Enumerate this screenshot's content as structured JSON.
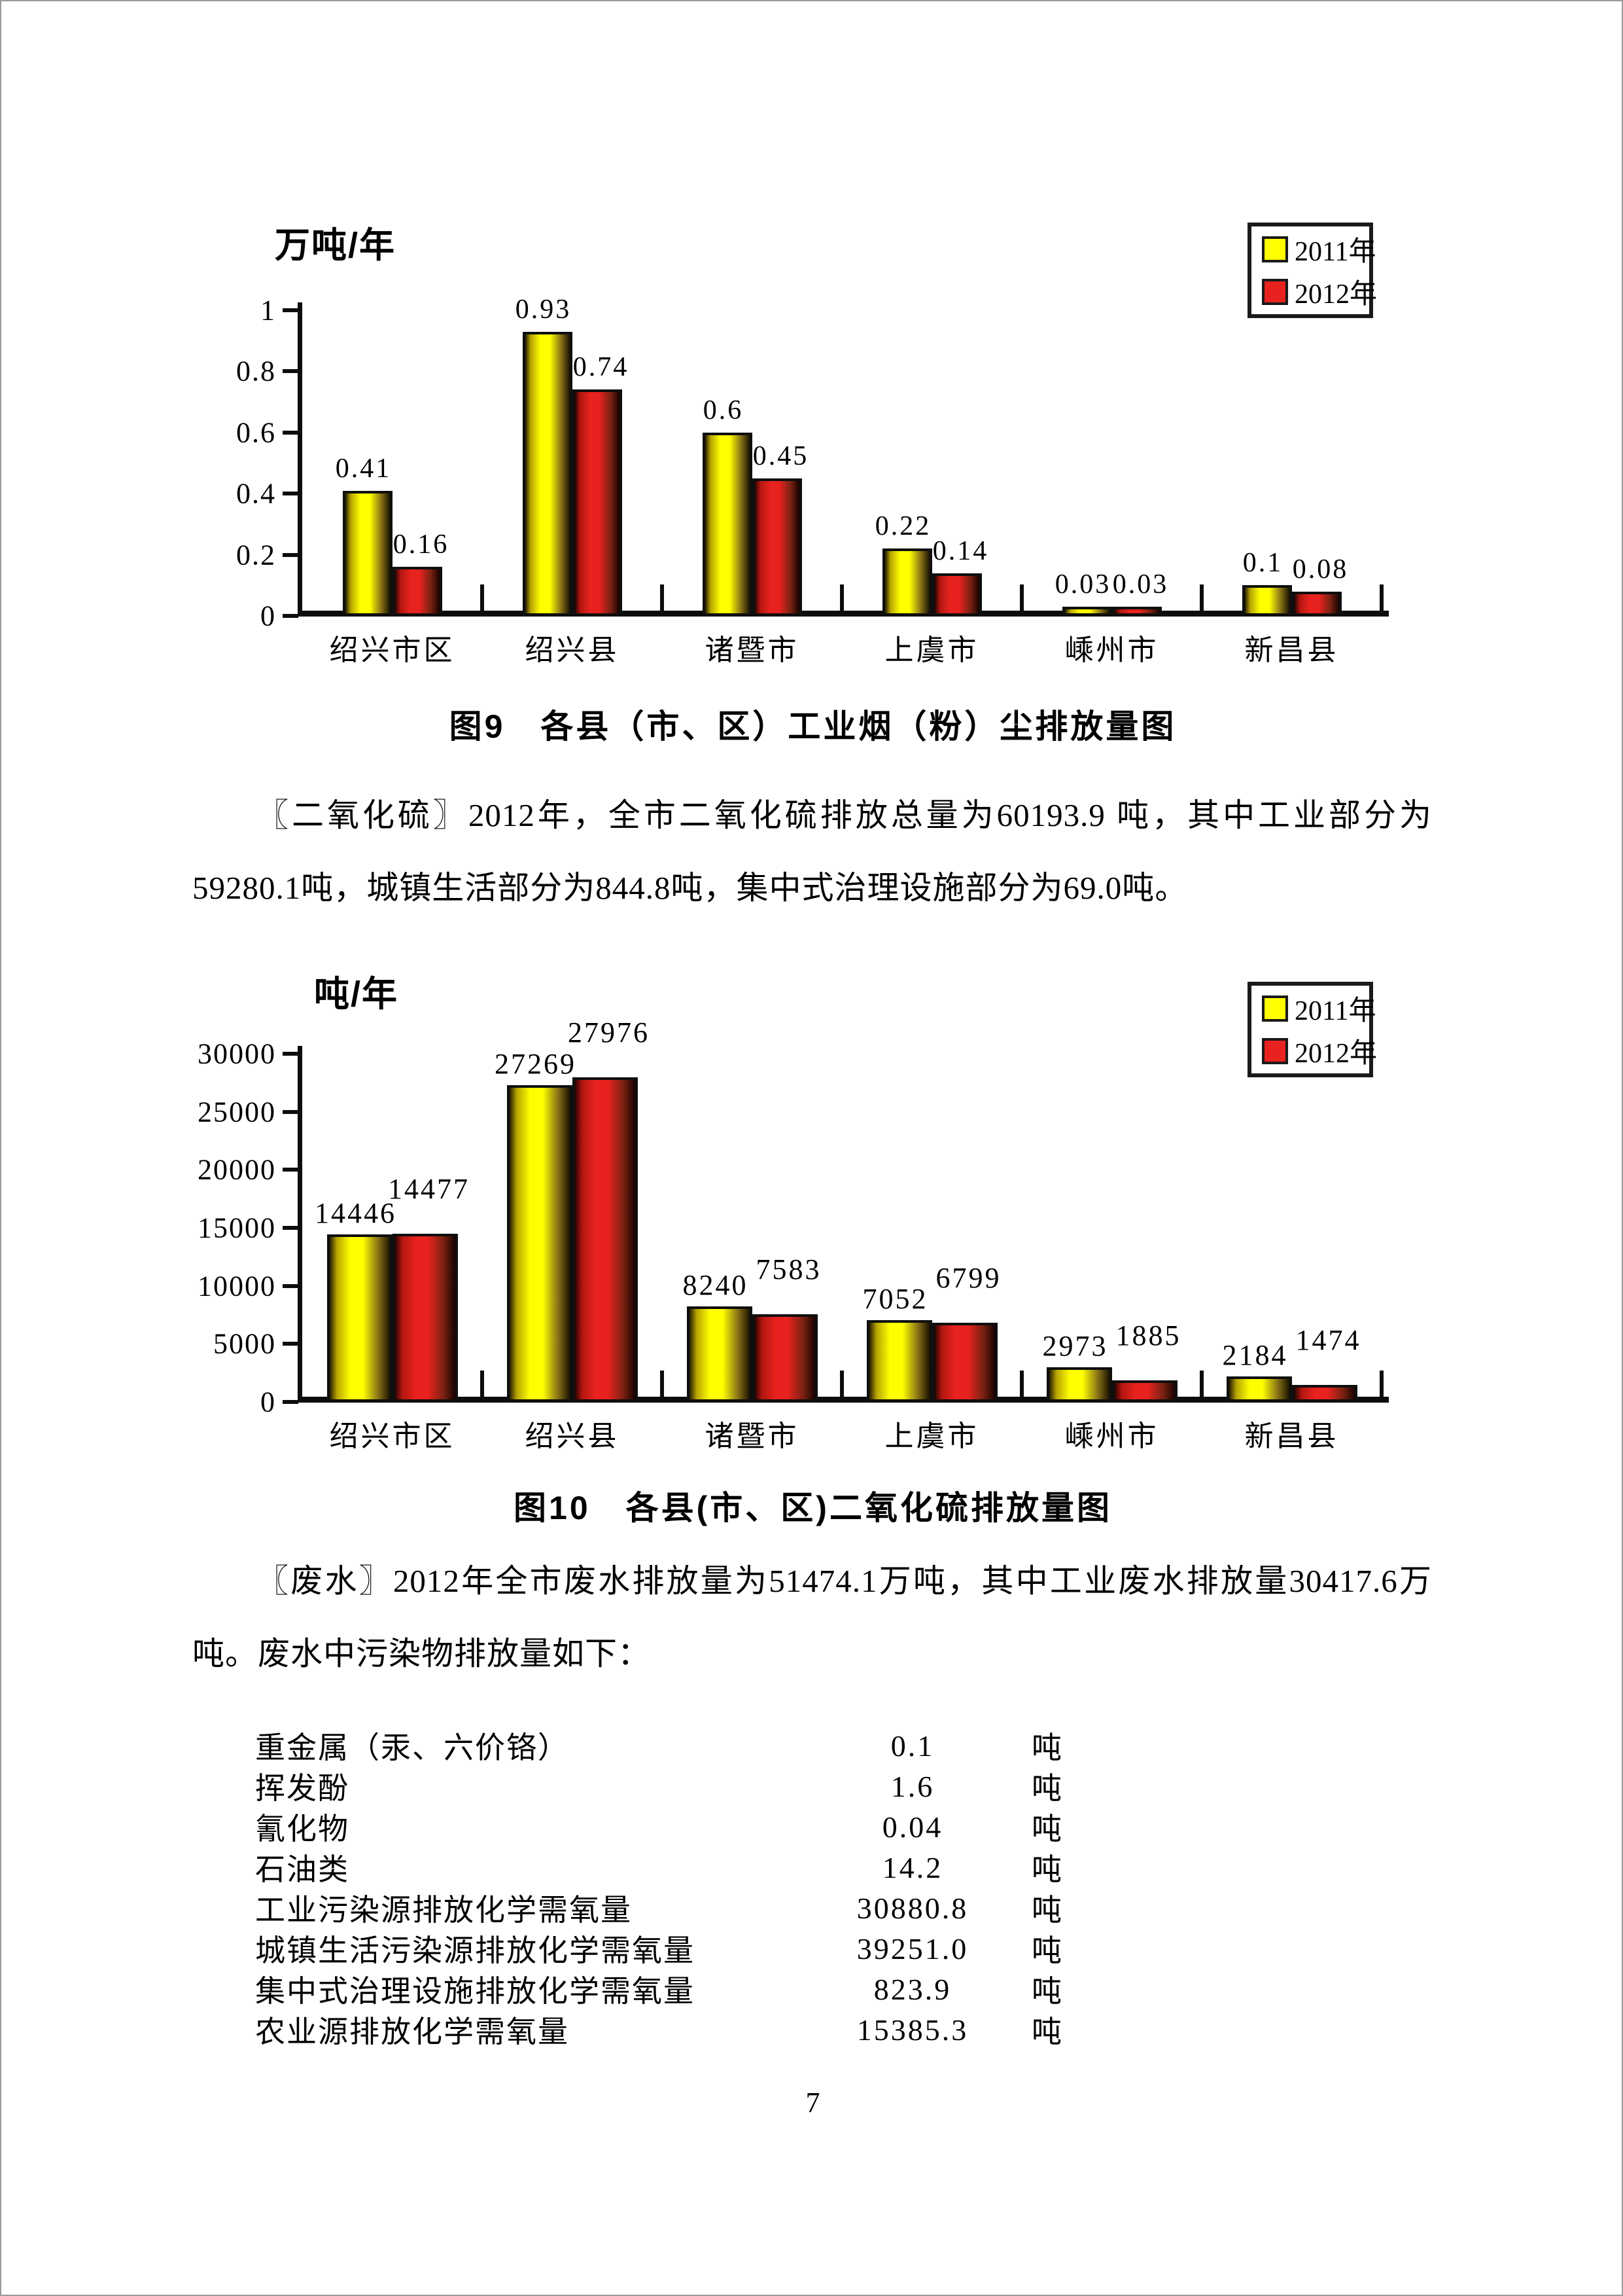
{
  "page": {
    "number": "7"
  },
  "colors": {
    "series_2011": "#ffff00",
    "series_2012": "#e8221e",
    "axis": "#0d0d0d"
  },
  "chart_data": [
    {
      "type": "bar",
      "unit_label": "万吨/年",
      "title": "图9　各县（市、区）工业烟（粉）尘排放量图",
      "categories": [
        "绍兴市区",
        "绍兴县",
        "诸暨市",
        "上虞市",
        "嵊州市",
        "新昌县"
      ],
      "series": [
        {
          "name": "2011年",
          "color": "#ffff00",
          "values": [
            0.41,
            0.93,
            0.6,
            0.22,
            0.03,
            0.1
          ],
          "labels": [
            "0.41",
            "0.93",
            "0.6",
            "0.22",
            "0.03",
            "0.1"
          ]
        },
        {
          "name": "2012年",
          "color": "#e8221e",
          "values": [
            0.16,
            0.74,
            0.45,
            0.14,
            0.03,
            0.08
          ],
          "labels": [
            "0.16",
            "0.74",
            "0.45",
            "0.14",
            "0.03",
            "0.08"
          ]
        }
      ],
      "ylim": [
        0,
        1
      ],
      "yticks": [
        1,
        0.8,
        0.6,
        0.4,
        0.2,
        0
      ],
      "ytick_labels": [
        "1",
        "0.8",
        "0.6",
        "0.4",
        "0.2",
        "0"
      ],
      "legend_position": "top-right",
      "grid": false
    },
    {
      "type": "bar",
      "unit_label": "吨/年",
      "title": "图10　各县(市、区)二氧化硫排放量图",
      "categories": [
        "绍兴市区",
        "绍兴县",
        "诸暨市",
        "上虞市",
        "嵊州市",
        "新昌县"
      ],
      "series": [
        {
          "name": "2011年",
          "color": "#ffff00",
          "values": [
            14446,
            27269,
            8240,
            7052,
            2973,
            2184
          ],
          "labels": [
            "14446",
            "27269",
            "8240",
            "7052",
            "2973",
            "2184"
          ]
        },
        {
          "name": "2012年",
          "color": "#e8221e",
          "values": [
            14477,
            27976,
            7583,
            6799,
            1885,
            1474
          ],
          "labels": [
            "14477",
            "27976",
            "7583",
            "6799",
            "1885",
            "1474"
          ]
        }
      ],
      "ylim": [
        0,
        30000
      ],
      "yticks": [
        30000,
        25000,
        20000,
        15000,
        10000,
        5000,
        0
      ],
      "ytick_labels": [
        "30000",
        "25000",
        "20000",
        "15000",
        "10000",
        "5000",
        "0"
      ],
      "legend_position": "top-right",
      "grid": false
    }
  ],
  "paragraphs": [
    "〖二氧化硫〗2012年，全市二氧化硫排放总量为60193.9 吨，其中工业部分为59280.1吨，城镇生活部分为844.8吨，集中式治理设施部分为69.0吨。",
    "〖废水〗2012年全市废水排放量为51474.1万吨，其中工业废水排放量30417.6万吨。废水中污染物排放量如下："
  ],
  "pollutant_list": [
    {
      "name": "重金属（汞、六价铬）",
      "value": "0.1",
      "unit": "吨"
    },
    {
      "name": "挥发酚",
      "value": "1.6",
      "unit": "吨"
    },
    {
      "name": "氰化物",
      "value": "0.04",
      "unit": "吨"
    },
    {
      "name": "石油类",
      "value": "14.2",
      "unit": "吨"
    },
    {
      "name": "工业污染源排放化学需氧量",
      "value": "30880.8",
      "unit": "吨"
    },
    {
      "name": "城镇生活污染源排放化学需氧量",
      "value": "39251.0",
      "unit": "吨"
    },
    {
      "name": "集中式治理设施排放化学需氧量",
      "value": "823.9",
      "unit": "吨"
    },
    {
      "name": "农业源排放化学需氧量",
      "value": "15385.3",
      "unit": "吨"
    }
  ]
}
